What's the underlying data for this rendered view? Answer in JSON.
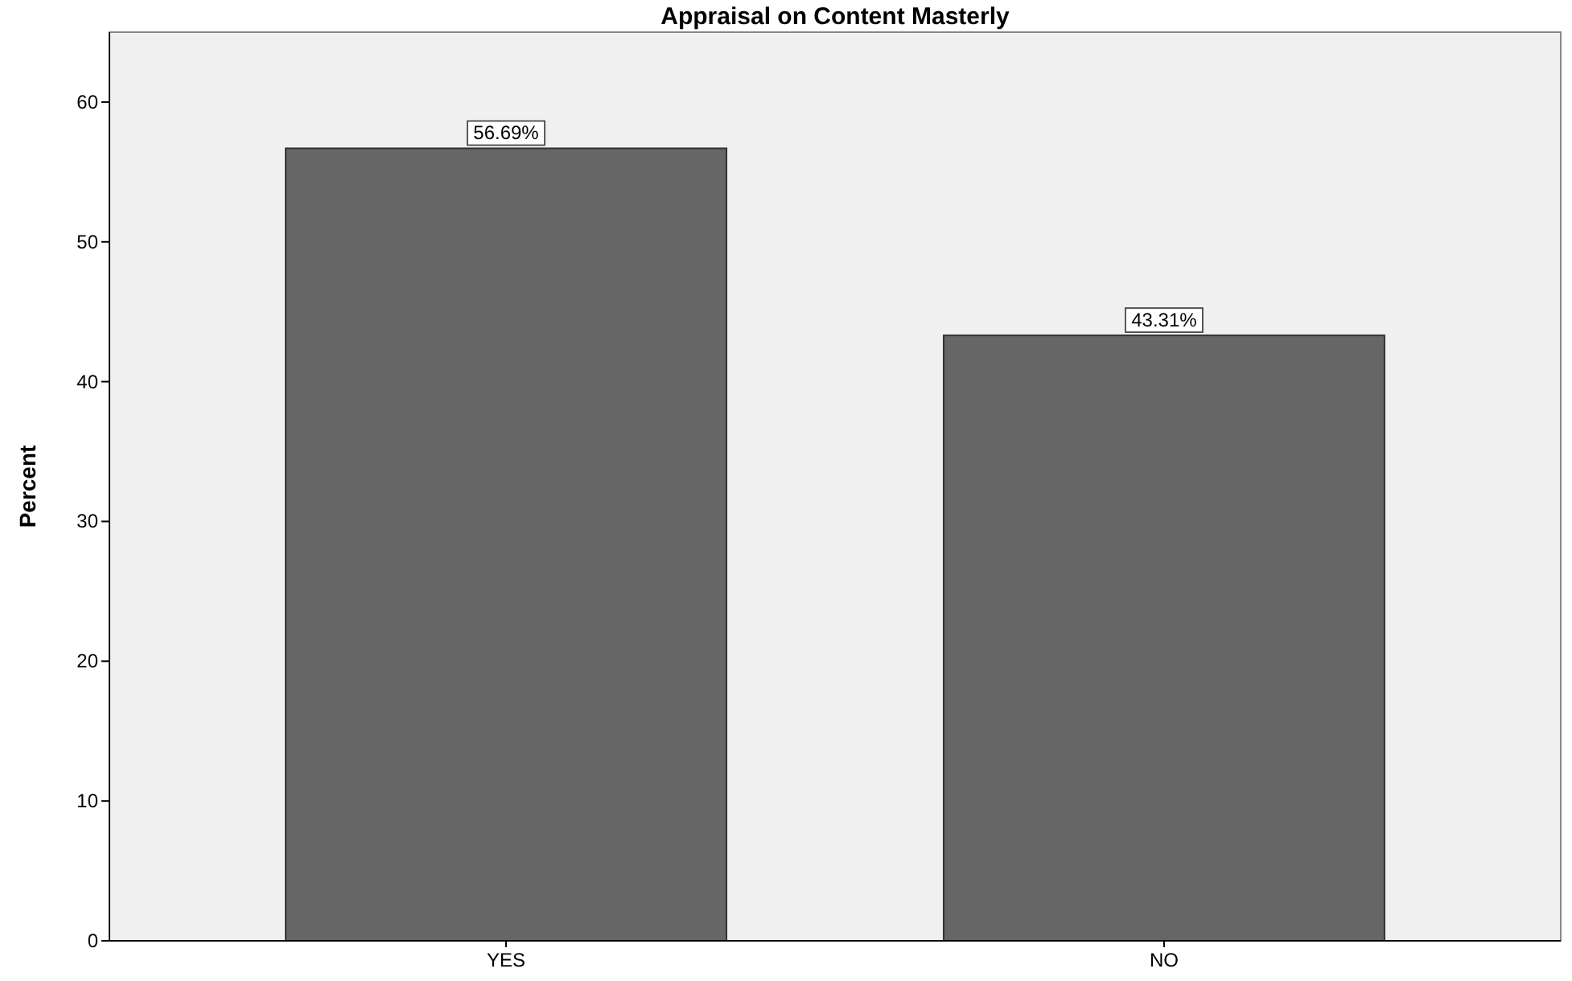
{
  "chart_data": {
    "type": "bar",
    "title": "Appraisal on Content Masterly",
    "ylabel": "Percent",
    "categories": [
      "YES",
      "NO"
    ],
    "values": [
      56.69,
      43.31
    ],
    "value_labels": [
      "56.69%",
      "43.31%"
    ],
    "color": "#666666",
    "ylim": [
      0,
      65
    ],
    "yticks": [
      0,
      10,
      20,
      30,
      40,
      50,
      60
    ],
    "grid": false
  }
}
